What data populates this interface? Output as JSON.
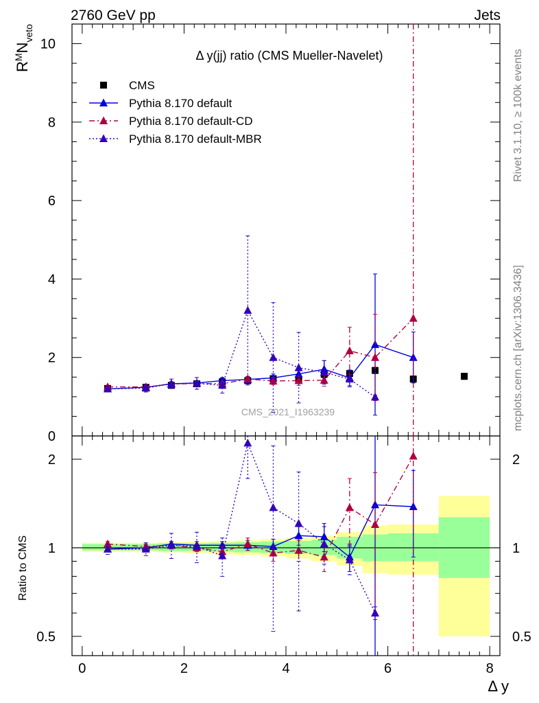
{
  "header": {
    "energy_label": "2760 GeV pp",
    "process_label": "Jets"
  },
  "side_labels": {
    "rivet": "Rivet 3.1.10, ≥ 100k events",
    "mcplots": "mcplots.cern.ch [arXiv:1306.3436]"
  },
  "chart_data": [
    {
      "type": "scatter",
      "title": "Δ y(jj) ratio (CMS Mueller-Navelet)",
      "ylabel_base": "R",
      "ylabel_sup": "M",
      "ylabel_main": "N",
      "ylabel_sub": "veto",
      "analysis_id": "CMS_2021_I1963239",
      "ylim": [
        0,
        10.5
      ],
      "yticks": [
        0,
        2,
        4,
        6,
        8,
        10
      ],
      "xlim": [
        -0.2,
        8.2
      ],
      "xticks": [
        0,
        2,
        4,
        6,
        8
      ],
      "legend_position": "top-left",
      "series": [
        {
          "name": "CMS",
          "color": "#000000",
          "marker": "square",
          "line": "none",
          "x": [
            0.5,
            1.25,
            1.75,
            2.25,
            2.75,
            3.25,
            3.75,
            4.25,
            4.75,
            5.25,
            5.75,
            6.5,
            7.5
          ],
          "y": [
            1.21,
            1.24,
            1.29,
            1.33,
            1.38,
            1.41,
            1.46,
            1.44,
            1.57,
            1.59,
            1.67,
            1.45,
            1.52
          ],
          "yerr": [
            0.02,
            0.02,
            0.02,
            0.02,
            0.03,
            0.03,
            0.03,
            0.04,
            0.05,
            0.06,
            0.08,
            0.08,
            0.08
          ]
        },
        {
          "name": "Pythia 8.170 default",
          "color": "#0000dd",
          "marker": "triangle",
          "line": "solid",
          "x": [
            0.5,
            1.25,
            1.75,
            2.25,
            2.75,
            3.25,
            3.75,
            4.25,
            4.75,
            5.25,
            5.75,
            6.5
          ],
          "y": [
            1.2,
            1.24,
            1.33,
            1.35,
            1.41,
            1.44,
            1.48,
            1.58,
            1.7,
            1.48,
            2.33,
            2.0
          ],
          "yerr": [
            0.04,
            0.04,
            0.05,
            0.05,
            0.06,
            0.07,
            0.1,
            0.14,
            0.22,
            0.2,
            1.8,
            0.65
          ]
        },
        {
          "name": "Pythia 8.170 default-CD",
          "color": "#b00040",
          "marker": "triangle",
          "line": "dashdot",
          "x": [
            0.5,
            1.25,
            1.75,
            2.25,
            2.75,
            3.25,
            3.75,
            4.25,
            4.75,
            5.25,
            5.75,
            6.5
          ],
          "y": [
            1.25,
            1.25,
            1.32,
            1.34,
            1.33,
            1.45,
            1.4,
            1.41,
            1.42,
            2.17,
            2.0,
            3.0
          ],
          "yerr": [
            0.04,
            0.04,
            0.05,
            0.05,
            0.06,
            0.07,
            0.09,
            0.12,
            0.15,
            0.6,
            1.1,
            9.0
          ]
        },
        {
          "name": "Pythia 8.170 default-MBR",
          "color": "#3300bb",
          "marker": "triangle",
          "line": "dotted",
          "x": [
            0.5,
            1.25,
            1.75,
            2.25,
            2.75,
            3.25,
            3.75,
            4.25,
            4.75,
            5.25,
            5.75
          ],
          "y": [
            1.2,
            1.22,
            1.33,
            1.34,
            1.29,
            3.2,
            2.0,
            1.74,
            1.62,
            1.45,
            0.99
          ],
          "yerr": [
            0.08,
            0.1,
            0.12,
            0.15,
            0.2,
            1.9,
            1.4,
            0.9,
            0.3,
            0.2,
            0.05
          ]
        }
      ]
    },
    {
      "type": "scatter",
      "ylabel": "Ratio to CMS",
      "xlabel": "Δ y",
      "yscale": "log",
      "ylim": [
        0.43,
        2.4
      ],
      "yticks": [
        0.5,
        1,
        2
      ],
      "xlim": [
        -0.2,
        8.2
      ],
      "xticks": [
        0,
        2,
        4,
        6,
        8
      ],
      "bands": [
        {
          "x0": 0.0,
          "x1": 1.0,
          "yellow": [
            0.97,
            1.04
          ],
          "green": [
            0.98,
            1.03
          ]
        },
        {
          "x0": 1.0,
          "x1": 1.5,
          "yellow": [
            0.97,
            1.04
          ],
          "green": [
            0.98,
            1.03
          ]
        },
        {
          "x0": 1.5,
          "x1": 2.0,
          "yellow": [
            0.965,
            1.045
          ],
          "green": [
            0.975,
            1.035
          ]
        },
        {
          "x0": 2.0,
          "x1": 2.5,
          "yellow": [
            0.96,
            1.05
          ],
          "green": [
            0.975,
            1.035
          ]
        },
        {
          "x0": 2.5,
          "x1": 3.0,
          "yellow": [
            0.95,
            1.055
          ],
          "green": [
            0.97,
            1.04
          ]
        },
        {
          "x0": 3.0,
          "x1": 3.5,
          "yellow": [
            0.945,
            1.06
          ],
          "green": [
            0.965,
            1.045
          ]
        },
        {
          "x0": 3.5,
          "x1": 4.0,
          "yellow": [
            0.935,
            1.07
          ],
          "green": [
            0.96,
            1.05
          ]
        },
        {
          "x0": 4.0,
          "x1": 4.5,
          "yellow": [
            0.92,
            1.08
          ],
          "green": [
            0.955,
            1.055
          ]
        },
        {
          "x0": 4.5,
          "x1": 5.0,
          "yellow": [
            0.9,
            1.1
          ],
          "green": [
            0.945,
            1.065
          ]
        },
        {
          "x0": 5.0,
          "x1": 5.5,
          "yellow": [
            0.87,
            1.13
          ],
          "green": [
            0.92,
            1.09
          ]
        },
        {
          "x0": 5.5,
          "x1": 6.0,
          "yellow": [
            0.82,
            1.19
          ],
          "green": [
            0.9,
            1.11
          ]
        },
        {
          "x0": 6.0,
          "x1": 7.0,
          "yellow": [
            0.81,
            1.2
          ],
          "green": [
            0.9,
            1.12
          ]
        },
        {
          "x0": 7.0,
          "x1": 8.0,
          "yellow": [
            0.5,
            1.5
          ],
          "green": [
            0.79,
            1.27
          ]
        }
      ],
      "series": [
        {
          "name": "Pythia 8.170 default",
          "color": "#0000dd",
          "line": "solid",
          "x": [
            0.5,
            1.25,
            1.75,
            2.25,
            2.75,
            3.25,
            3.75,
            4.25,
            4.75,
            5.25,
            5.75,
            6.5
          ],
          "y": [
            0.99,
            1.0,
            1.03,
            1.02,
            1.02,
            1.02,
            1.01,
            1.1,
            1.09,
            0.93,
            1.4,
            1.38
          ],
          "yerr": [
            0.02,
            0.02,
            0.02,
            0.03,
            0.03,
            0.04,
            0.06,
            0.08,
            0.12,
            0.1,
            1.0,
            0.45
          ]
        },
        {
          "name": "Pythia 8.170 default-CD",
          "color": "#b00040",
          "line": "dashdot",
          "x": [
            0.5,
            1.25,
            1.75,
            2.25,
            2.75,
            3.25,
            3.75,
            4.25,
            4.75,
            5.25,
            5.75,
            6.5
          ],
          "y": [
            1.03,
            1.01,
            1.02,
            1.0,
            0.97,
            1.03,
            0.96,
            0.98,
            0.93,
            1.37,
            1.2,
            2.05
          ],
          "yerr": [
            0.02,
            0.02,
            0.03,
            0.03,
            0.04,
            0.05,
            0.06,
            0.08,
            0.1,
            0.35,
            0.6,
            3.0
          ]
        },
        {
          "name": "Pythia 8.170 default-MBR",
          "color": "#3300bb",
          "line": "dotted",
          "x": [
            0.5,
            1.25,
            1.75,
            2.25,
            2.75,
            3.25,
            3.75,
            4.25,
            4.75,
            5.25,
            5.75
          ],
          "y": [
            0.99,
            0.99,
            1.02,
            1.01,
            0.94,
            2.27,
            1.37,
            1.21,
            1.03,
            0.91,
            0.6
          ],
          "yerr": [
            0.04,
            0.05,
            0.1,
            0.12,
            0.14,
            0.55,
            0.85,
            0.6,
            0.15,
            0.1,
            0.03
          ]
        }
      ]
    }
  ]
}
